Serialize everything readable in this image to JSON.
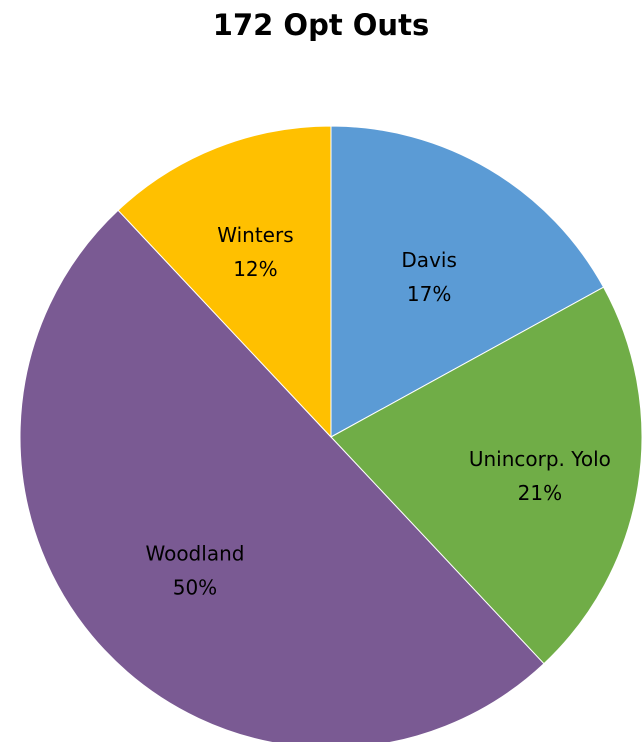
{
  "chart_data": {
    "type": "pie",
    "title": "172 Opt Outs",
    "slices": [
      {
        "label": "Davis",
        "value": 17,
        "percent_label": "17%",
        "color": "#5b9bd5"
      },
      {
        "label": "Unincorp. Yolo",
        "value": 21,
        "percent_label": "21%",
        "color": "#70ad47"
      },
      {
        "label": "Woodland",
        "value": 50,
        "percent_label": "50%",
        "color": "#7a5a93"
      },
      {
        "label": "Winters",
        "value": 12,
        "percent_label": "12%",
        "color": "#ffc000"
      }
    ],
    "start": "12 o'clock",
    "direction": "clockwise",
    "legend": "none",
    "data_labels": "category name and percentage inside slices"
  }
}
